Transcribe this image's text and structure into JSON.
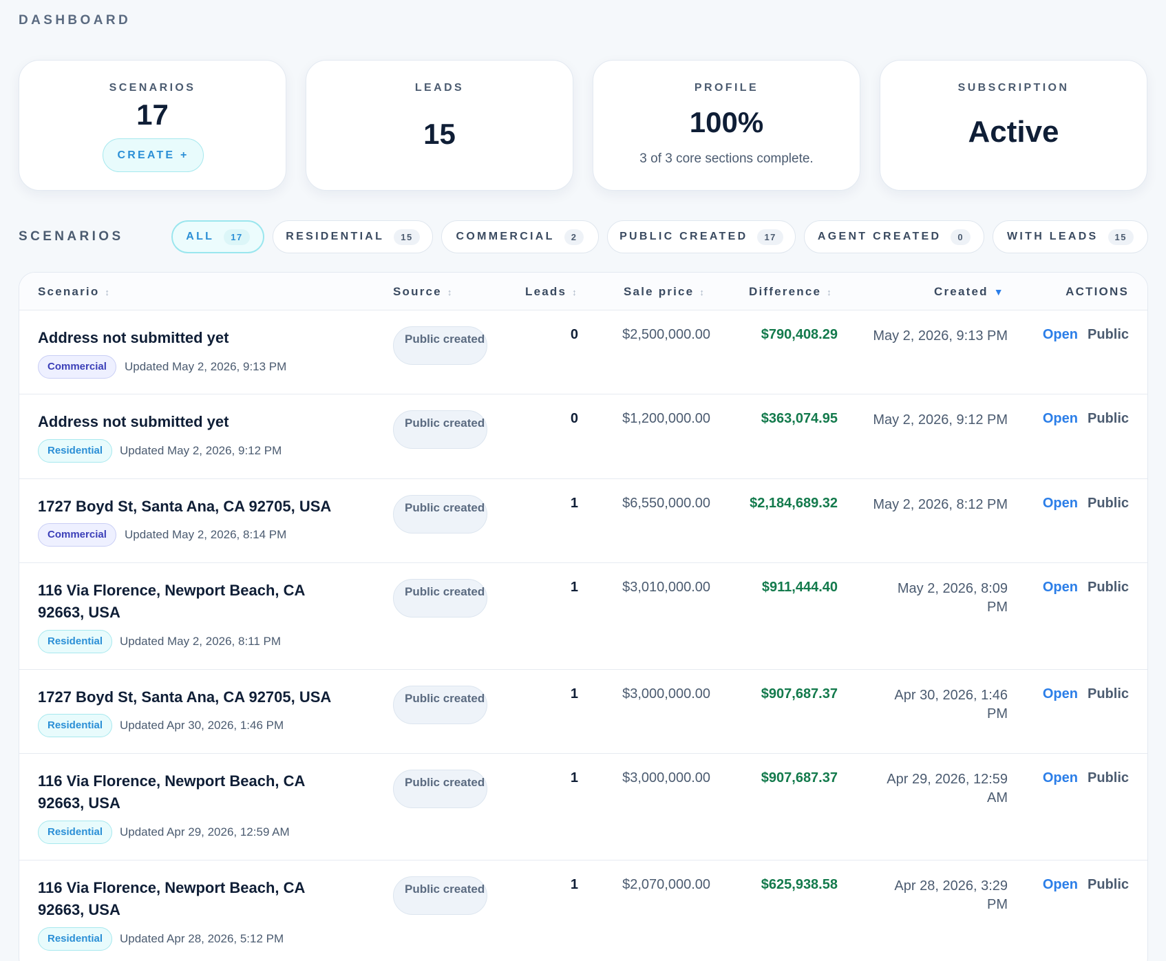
{
  "page": {
    "title": "DASHBOARD"
  },
  "stats": {
    "scenarios": {
      "label": "SCENARIOS",
      "value": "17",
      "button": "CREATE +"
    },
    "leads": {
      "label": "LEADS",
      "value": "15"
    },
    "profile": {
      "label": "PROFILE",
      "value": "100%",
      "subtitle": "3 of 3 core sections complete."
    },
    "subscription": {
      "label": "SUBSCRIPTION",
      "value": "Active"
    }
  },
  "scenarios_section": {
    "label": "SCENARIOS",
    "filters": [
      {
        "label": "ALL",
        "count": "17",
        "active": true
      },
      {
        "label": "RESIDENTIAL",
        "count": "15",
        "active": false
      },
      {
        "label": "COMMERCIAL",
        "count": "2",
        "active": false
      },
      {
        "label": "PUBLIC CREATED",
        "count": "17",
        "active": false
      },
      {
        "label": "AGENT CREATED",
        "count": "0",
        "active": false
      },
      {
        "label": "WITH LEADS",
        "count": "15",
        "active": false
      }
    ]
  },
  "table": {
    "columns": {
      "scenario": "Scenario",
      "source": "Source",
      "leads": "Leads",
      "sale_price": "Sale price",
      "difference": "Difference",
      "created": "Created",
      "actions": "ACTIONS"
    },
    "sorted_column": "created",
    "sorted_direction": "descending",
    "rows": [
      {
        "title": "Address not submitted yet",
        "type": "Commercial",
        "updated": "Updated May 2, 2026, 9:13 PM",
        "source": "Public created",
        "leads": "0",
        "sale_price": "$2,500,000.00",
        "difference": "$790,408.29",
        "created": "May 2, 2026, 9:13 PM",
        "open": "Open",
        "public": "Public"
      },
      {
        "title": "Address not submitted yet",
        "type": "Residential",
        "updated": "Updated May 2, 2026, 9:12 PM",
        "source": "Public created",
        "leads": "0",
        "sale_price": "$1,200,000.00",
        "difference": "$363,074.95",
        "created": "May 2, 2026, 9:12 PM",
        "open": "Open",
        "public": "Public"
      },
      {
        "title": "1727 Boyd St, Santa Ana, CA 92705, USA",
        "type": "Commercial",
        "updated": "Updated May 2, 2026, 8:14 PM",
        "source": "Public created",
        "leads": "1",
        "sale_price": "$6,550,000.00",
        "difference": "$2,184,689.32",
        "created": "May 2, 2026, 8:12 PM",
        "open": "Open",
        "public": "Public"
      },
      {
        "title": "116 Via Florence, Newport Beach, CA 92663, USA",
        "type": "Residential",
        "updated": "Updated May 2, 2026, 8:11 PM",
        "source": "Public created",
        "leads": "1",
        "sale_price": "$3,010,000.00",
        "difference": "$911,444.40",
        "created": "May 2, 2026, 8:09 PM",
        "open": "Open",
        "public": "Public"
      },
      {
        "title": "1727 Boyd St, Santa Ana, CA 92705, USA",
        "type": "Residential",
        "updated": "Updated Apr 30, 2026, 1:46 PM",
        "source": "Public created",
        "leads": "1",
        "sale_price": "$3,000,000.00",
        "difference": "$907,687.37",
        "created": "Apr 30, 2026, 1:46 PM",
        "open": "Open",
        "public": "Public"
      },
      {
        "title": "116 Via Florence, Newport Beach, CA 92663, USA",
        "type": "Residential",
        "updated": "Updated Apr 29, 2026, 12:59 AM",
        "source": "Public created",
        "leads": "1",
        "sale_price": "$3,000,000.00",
        "difference": "$907,687.37",
        "created": "Apr 29, 2026, 12:59 AM",
        "open": "Open",
        "public": "Public"
      },
      {
        "title": "116 Via Florence, Newport Beach, CA 92663, USA",
        "type": "Residential",
        "updated": "Updated Apr 28, 2026, 5:12 PM",
        "source": "Public created",
        "leads": "1",
        "sale_price": "$2,070,000.00",
        "difference": "$625,938.58",
        "created": "Apr 28, 2026, 3:29 PM",
        "open": "Open",
        "public": "Public"
      }
    ]
  }
}
